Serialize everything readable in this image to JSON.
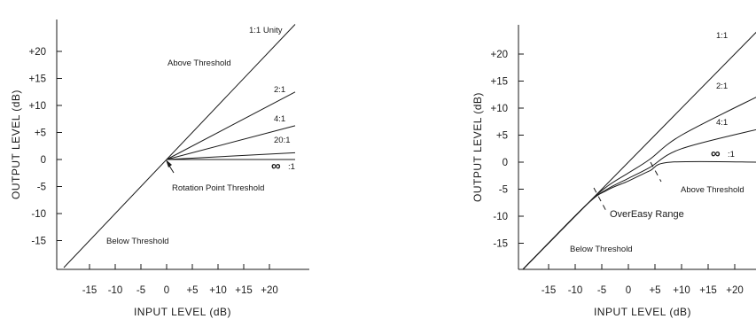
{
  "chart_data": [
    {
      "type": "line",
      "title": "",
      "xlabel": "INPUT LEVEL (dB)",
      "ylabel": "OUTPUT LEVEL (dB)",
      "xlim": [
        -20,
        25
      ],
      "ylim": [
        -20,
        25
      ],
      "x_ticks": [
        -15,
        -10,
        -5,
        0,
        5,
        10,
        15,
        20
      ],
      "x_tick_labels": [
        "-15",
        "-10",
        "-5",
        "0",
        "+5",
        "+10",
        "+15",
        "+20"
      ],
      "y_ticks": [
        20,
        15,
        10,
        5,
        0,
        -5,
        -10,
        -15
      ],
      "y_tick_labels": [
        "+20",
        "+15",
        "+10",
        "+5",
        "0",
        "-5",
        "-10",
        "-15"
      ],
      "rotation_point": [
        0,
        0
      ],
      "series": [
        {
          "name": "1:1",
          "x": [
            -20,
            25
          ],
          "y": [
            -20,
            25
          ]
        },
        {
          "name": "2:1",
          "x": [
            0,
            25
          ],
          "y": [
            0,
            12.5
          ]
        },
        {
          "name": "4:1",
          "x": [
            0,
            25
          ],
          "y": [
            0,
            6.25
          ]
        },
        {
          "name": "20:1",
          "x": [
            0,
            25
          ],
          "y": [
            0,
            1.25
          ]
        },
        {
          "name": ":1",
          "x": [
            0,
            25
          ],
          "y": [
            0,
            0
          ]
        }
      ],
      "annotations": [
        "1:1  Unity",
        "Above Threshold",
        "Rotation  Point  Threshold",
        "Below Threshold"
      ]
    },
    {
      "type": "line",
      "title": "",
      "xlabel": "INPUT LEVEL (dB)",
      "ylabel": "OUTPUT LEVEL (dB)",
      "xlim": [
        -20,
        25
      ],
      "ylim": [
        -20,
        25
      ],
      "x_ticks": [
        -15,
        -10,
        -5,
        0,
        5,
        10,
        15,
        20
      ],
      "x_tick_labels": [
        "-15",
        "-10",
        "-5",
        "0",
        "+5",
        "+10",
        "+15",
        "+20"
      ],
      "y_ticks": [
        20,
        15,
        10,
        5,
        0,
        -5,
        -10,
        -15
      ],
      "y_tick_labels": [
        "+20",
        "+15",
        "+10",
        "+5",
        "0",
        "-5",
        "-10",
        "-15"
      ],
      "soft_knee_range": [
        -10,
        10
      ],
      "series": [
        {
          "name": "1:1",
          "x": [
            -20,
            25
          ],
          "y": [
            -20,
            25
          ]
        },
        {
          "name": "2:1",
          "x": [
            -20,
            -8,
            -4,
            0,
            4,
            10,
            25
          ],
          "y": [
            -20,
            -8,
            -4.5,
            -2,
            0.5,
            5,
            12.5
          ]
        },
        {
          "name": "4:1",
          "x": [
            -20,
            -8,
            -4,
            0,
            4,
            10,
            25
          ],
          "y": [
            -20,
            -8,
            -5,
            -3,
            -1,
            2.5,
            6.25
          ]
        },
        {
          "name": ":1",
          "x": [
            -20,
            -8,
            -4,
            0,
            4,
            8,
            25
          ],
          "y": [
            -20,
            -8,
            -5.2,
            -3.5,
            -1.6,
            0,
            0
          ]
        }
      ],
      "annotations": [
        "1:1",
        "Above Threshold",
        "OverEasy  Range",
        "Below Threshold"
      ]
    }
  ]
}
